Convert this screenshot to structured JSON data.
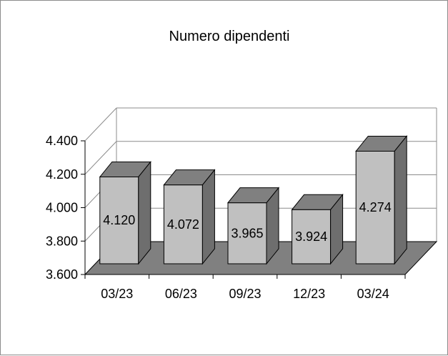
{
  "chart_data": {
    "type": "bar",
    "title": "Numero dipendenti",
    "categories": [
      "03/23",
      "06/23",
      "09/23",
      "12/23",
      "03/24"
    ],
    "values": [
      4120,
      4072,
      3965,
      3924,
      4274
    ],
    "value_labels": [
      "4.120",
      "4.072",
      "3.965",
      "3.924",
      "4.274"
    ],
    "ylim": [
      3600,
      4400
    ],
    "y_ticks": [
      3600,
      3800,
      4000,
      4200,
      4400
    ],
    "y_tick_labels": [
      "3.600",
      "3.800",
      "4.000",
      "4.200",
      "4.400"
    ],
    "grid": true,
    "legend": "none",
    "style": "3d-column",
    "colors": {
      "bar_front": "#c0c0c0",
      "bar_top": "#808080",
      "bar_side": "#6e6e6e",
      "floor": "#808080",
      "grid": "#8c8c8c",
      "frame": "#8c8c8c"
    }
  }
}
